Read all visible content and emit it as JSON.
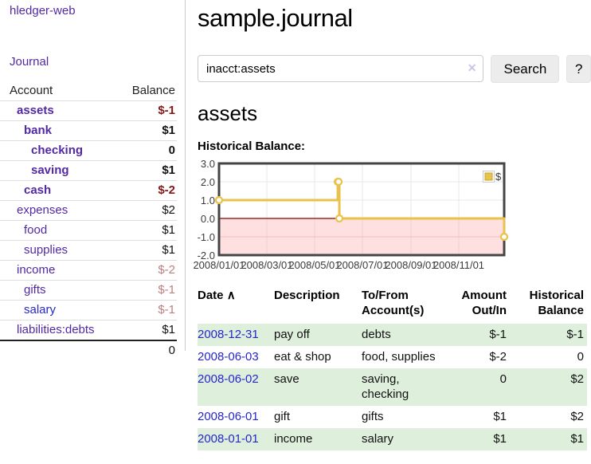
{
  "app": {
    "title": "hledger-web"
  },
  "sidebar": {
    "journal_link": "Journal",
    "accounts": {
      "header_account": "Account",
      "header_balance": "Balance",
      "rows": [
        {
          "name": "assets",
          "balance": "$-1"
        },
        {
          "name": "bank",
          "balance": "$1"
        },
        {
          "name": "checking",
          "balance": "0"
        },
        {
          "name": "saving",
          "balance": "$1"
        },
        {
          "name": "cash",
          "balance": "$-2"
        },
        {
          "name": "expenses",
          "balance": "$2"
        },
        {
          "name": "food",
          "balance": "$1"
        },
        {
          "name": "supplies",
          "balance": "$1"
        },
        {
          "name": "income",
          "balance": "$-2"
        },
        {
          "name": "gifts",
          "balance": "$-1"
        },
        {
          "name": "salary",
          "balance": "$-1"
        },
        {
          "name": "liabilities:debts",
          "balance": "$1"
        }
      ],
      "total": "0"
    }
  },
  "main": {
    "title": "sample.journal",
    "search": {
      "value": "inacct:assets",
      "clear_icon": "✕",
      "search_button": "Search",
      "help_button": "?"
    },
    "account_title": "assets",
    "chart_heading": "Historical Balance:"
  },
  "chart_data": {
    "type": "line",
    "title": "Historical Balance",
    "legend": "$",
    "legend_position": "top-right",
    "line_style": "step-after",
    "series": [
      {
        "name": "$",
        "color": "#e8c24a",
        "points": [
          [
            "2008-01-01",
            1
          ],
          [
            "2008-06-01",
            2
          ],
          [
            "2008-06-02",
            2
          ],
          [
            "2008-06-03",
            0
          ],
          [
            "2008-12-31",
            -1
          ]
        ]
      }
    ],
    "x_ticks": [
      "2008/01/01",
      "2008/03/01",
      "2008/05/01",
      "2008/07/01",
      "2008/09/01",
      "2008/11/01"
    ],
    "y_ticks": [
      "3.0",
      "2.0",
      "1.0",
      "0.0",
      "-1.0",
      "-2.0"
    ],
    "xlim": [
      "2008-01-01",
      "2008-12-31"
    ],
    "ylim": [
      -2,
      3
    ],
    "grid": true,
    "negative_region_highlighted": true
  },
  "register": {
    "headers": {
      "date": "Date",
      "sort_indicator": "∧",
      "description": "Description",
      "accounts": "To/From Account(s)",
      "amount": "Amount Out/In",
      "balance": "Historical Balance"
    },
    "rows": [
      {
        "date": "2008-12-31",
        "description": "pay off",
        "accounts": "debts",
        "amount": "$-1",
        "balance": "$-1"
      },
      {
        "date": "2008-06-03",
        "description": "eat & shop",
        "accounts": "food, supplies",
        "amount": "$-2",
        "balance": "0"
      },
      {
        "date": "2008-06-02",
        "description": "save",
        "accounts": "saving, checking",
        "amount": "0",
        "balance": "$2"
      },
      {
        "date": "2008-06-01",
        "description": "gift",
        "accounts": "gifts",
        "amount": "$1",
        "balance": "$2"
      },
      {
        "date": "2008-01-01",
        "description": "income",
        "accounts": "salary",
        "amount": "$1",
        "balance": "$1"
      }
    ]
  },
  "colors": {
    "link_purple": "#5229a3",
    "link_blue": "#2626cc",
    "negative_strong": "#861717",
    "negative_soft": "#bd7e7e",
    "row_green": "#def0dc",
    "chart_line": "#e8c24a",
    "chart_negative_bg": "#fbdbdb",
    "chart_zero_line": "#8b0000",
    "chart_border": "#444444"
  }
}
